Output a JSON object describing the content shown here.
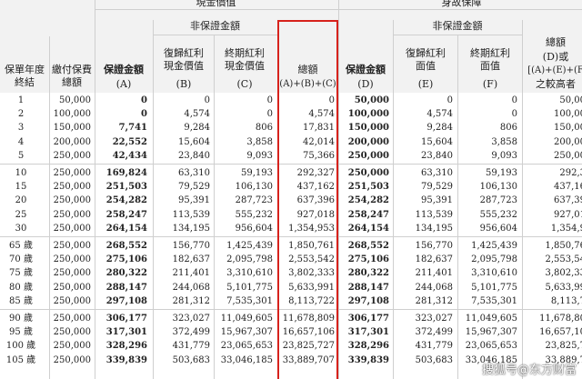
{
  "header": {
    "group_left": "現金價值",
    "group_right": "身故保障",
    "non_guaranteed_left": "非保證金額",
    "non_guaranteed_right": "非保證金額",
    "col_year": "保單年度終結",
    "col_premium": "繳付保費總額",
    "col_A": "保證金額",
    "col_A_sub": "(A)",
    "col_B": "復歸紅利現金價值",
    "col_B_sub": "(B)",
    "col_C": "終期紅利現金價值",
    "col_C_sub": "(C)",
    "col_total": "總額",
    "col_total_sub": "(A)+(B)+(C)",
    "col_D": "保證金額",
    "col_D_sub": "(D)",
    "col_E": "復歸紅利面值",
    "col_E_sub": "(E)",
    "col_F": "終期紅利面值",
    "col_F_sub": "(F)",
    "col_G": "總額",
    "col_G_sub1": "(D)或",
    "col_G_sub2": "[(A)+(E)+(F",
    "col_G_sub3": "之較高者"
  },
  "rows": [
    [
      "1",
      "50,000",
      "0",
      "0",
      "0",
      "0",
      "50,000",
      "0",
      "0",
      "50,00"
    ],
    [
      "2",
      "100,000",
      "0",
      "4,574",
      "0",
      "4,574",
      "100,000",
      "4,574",
      "0",
      "100,00"
    ],
    [
      "3",
      "150,000",
      "7,741",
      "9,284",
      "806",
      "17,831",
      "150,000",
      "9,284",
      "806",
      "150,00"
    ],
    [
      "4",
      "200,000",
      "22,552",
      "15,604",
      "3,858",
      "42,014",
      "200,000",
      "15,604",
      "3,858",
      "200,00"
    ],
    [
      "5",
      "250,000",
      "42,434",
      "23,840",
      "9,093",
      "75,366",
      "250,000",
      "23,840",
      "9,093",
      "250,00"
    ],
    [
      "10",
      "250,000",
      "169,824",
      "63,310",
      "59,193",
      "292,327",
      "250,000",
      "63,310",
      "59,193",
      "292,3"
    ],
    [
      "15",
      "250,000",
      "251,503",
      "79,529",
      "106,130",
      "437,162",
      "251,503",
      "79,529",
      "106,130",
      "437,16"
    ],
    [
      "20",
      "250,000",
      "254,282",
      "95,391",
      "287,723",
      "637,396",
      "254,282",
      "95,391",
      "287,723",
      "637,39"
    ],
    [
      "25",
      "250,000",
      "258,247",
      "113,539",
      "555,232",
      "927,018",
      "258,247",
      "113,539",
      "555,232",
      "927,01"
    ],
    [
      "30",
      "250,000",
      "264,154",
      "134,195",
      "956,604",
      "1,354,953",
      "264,154",
      "134,195",
      "956,604",
      "1,354,9"
    ],
    [
      "65 歲",
      "250,000",
      "268,552",
      "156,770",
      "1,425,439",
      "1,850,761",
      "268,552",
      "156,770",
      "1,425,439",
      "1,850,76"
    ],
    [
      "70 歲",
      "250,000",
      "275,106",
      "182,637",
      "2,095,798",
      "2,553,542",
      "275,106",
      "182,637",
      "2,095,798",
      "2,553,54"
    ],
    [
      "75 歲",
      "250,000",
      "280,322",
      "211,401",
      "3,310,610",
      "3,802,333",
      "280,322",
      "211,401",
      "3,310,610",
      "3,802,33"
    ],
    [
      "80 歲",
      "250,000",
      "288,147",
      "244,068",
      "5,101,775",
      "5,633,991",
      "288,147",
      "244,068",
      "5,101,775",
      "5,633,99"
    ],
    [
      "85 歲",
      "250,000",
      "297,108",
      "281,312",
      "7,535,301",
      "8,113,722",
      "297,108",
      "281,312",
      "7,535,301",
      "8,113,7"
    ],
    [
      "90 歲",
      "250,000",
      "306,177",
      "323,027",
      "11,049,605",
      "11,678,809",
      "306,177",
      "323,027",
      "11,049,605",
      "11,678,80"
    ],
    [
      "95 歲",
      "250,000",
      "317,301",
      "372,499",
      "15,967,307",
      "16,657,106",
      "317,301",
      "372,499",
      "15,967,307",
      "16,657,10"
    ],
    [
      "100 歲",
      "250,000",
      "328,296",
      "431,779",
      "23,065,653",
      "23,825,727",
      "328,296",
      "431,779",
      "23,065,653",
      "23,825,7"
    ],
    [
      "105 歲",
      "250,000",
      "339,839",
      "503,683",
      "33,046,185",
      "33,889,707",
      "339,839",
      "503,683",
      "33,046,185",
      "33,889,7"
    ]
  ],
  "watermark": "搜狐号@东方财富"
}
